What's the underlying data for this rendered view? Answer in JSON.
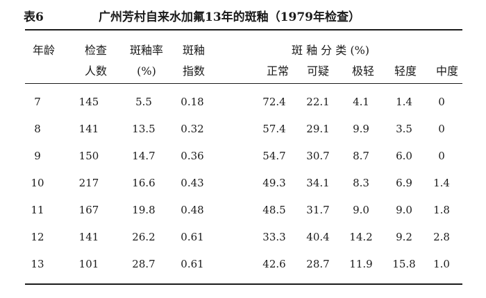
{
  "caption": {
    "label": "表6",
    "title": "广州芳村自来水加氟13年的斑釉（1979年检查）"
  },
  "headers": {
    "age": "年龄",
    "examined_line1": "检查",
    "examined_line2": "人数",
    "rate_line1": "斑釉率",
    "rate_line2": "(%)",
    "index_line1": "斑釉",
    "index_line2": "指数",
    "group_title": "斑 釉 分 类 (%)",
    "normal": "正常",
    "questionable": "可疑",
    "very_mild": "极轻",
    "mild": "轻度",
    "moderate": "中度"
  },
  "rows": [
    [
      "7",
      "145",
      "5.5",
      "0.18",
      "72.4",
      "22.1",
      "4.1",
      "1.4",
      "0"
    ],
    [
      "8",
      "141",
      "13.5",
      "0.32",
      "57.4",
      "29.1",
      "9.9",
      "3.5",
      "0"
    ],
    [
      "9",
      "150",
      "14.7",
      "0.36",
      "54.7",
      "30.7",
      "8.7",
      "6.0",
      "0"
    ],
    [
      "10",
      "217",
      "16.6",
      "0.43",
      "49.3",
      "34.1",
      "8.3",
      "6.9",
      "1.4"
    ],
    [
      "11",
      "167",
      "19.8",
      "0.48",
      "48.5",
      "31.7",
      "9.0",
      "9.0",
      "1.8"
    ],
    [
      "12",
      "141",
      "26.2",
      "0.61",
      "33.3",
      "40.4",
      "14.2",
      "9.2",
      "2.8"
    ],
    [
      "13",
      "101",
      "28.7",
      "0.61",
      "42.6",
      "28.7",
      "11.9",
      "15.8",
      "1.0"
    ]
  ]
}
